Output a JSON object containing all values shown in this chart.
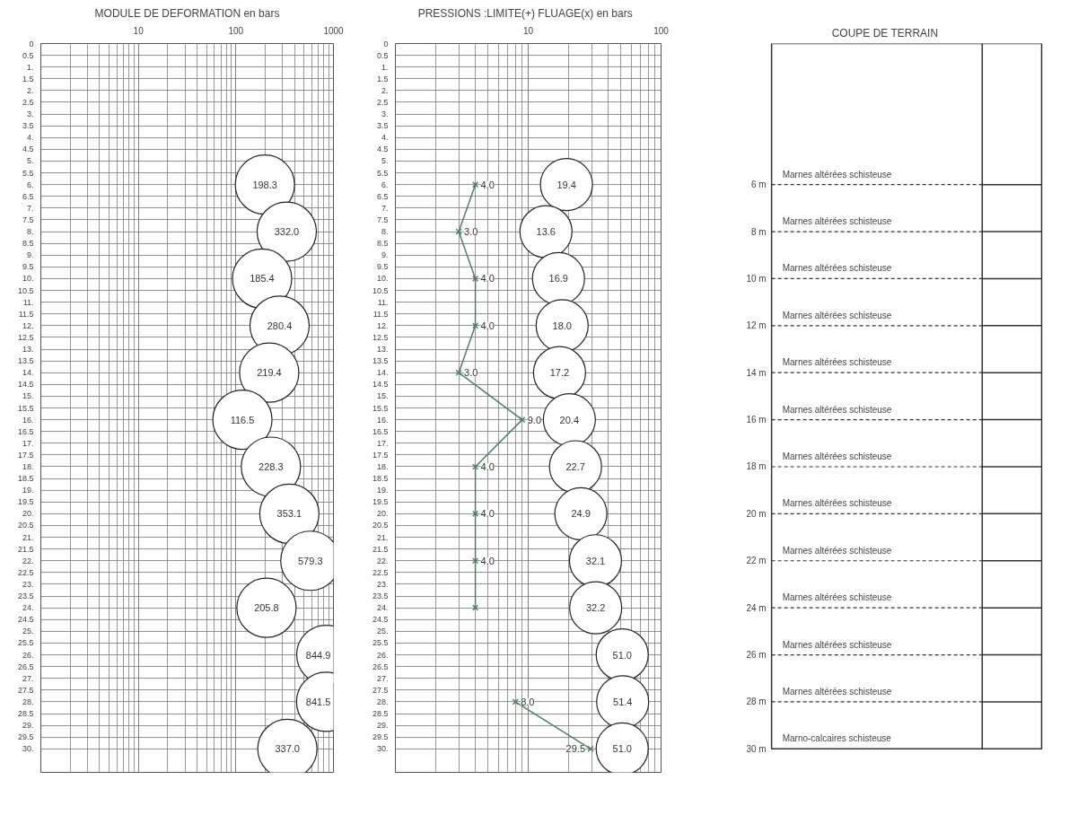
{
  "chart_data": [
    {
      "type": "scatter",
      "title": "MODULE DE DEFORMATION en bars",
      "orientation": "horizontal",
      "log": "x",
      "grid": true,
      "marker": "circle",
      "xlim": [
        1,
        1000
      ],
      "xticks": [
        10,
        100,
        1000
      ],
      "ylim": [
        31,
        0
      ],
      "yticks": [
        0,
        0.5,
        {
          "value": 1,
          "label": "1."
        },
        1.5,
        {
          "value": 2,
          "label": "2."
        },
        2.5,
        {
          "value": 3,
          "label": "3."
        },
        3.5,
        {
          "value": 4,
          "label": "4."
        },
        4.5,
        {
          "value": 5,
          "label": "5."
        },
        5.5,
        {
          "value": 6,
          "label": "6."
        },
        6.5,
        {
          "value": 7,
          "label": "7."
        },
        7.5,
        {
          "value": 8,
          "label": "8."
        },
        8.5,
        {
          "value": 9,
          "label": "9."
        },
        9.5,
        {
          "value": 10,
          "label": "10."
        },
        10.5,
        {
          "value": 11,
          "label": "11."
        },
        11.5,
        {
          "value": 12,
          "label": "12."
        },
        12.5,
        {
          "value": 13,
          "label": "13."
        },
        13.5,
        {
          "value": 14,
          "label": "14."
        },
        14.5,
        {
          "value": 15,
          "label": "15."
        },
        15.5,
        {
          "value": 16,
          "label": "16."
        },
        16.5,
        {
          "value": 17,
          "label": "17."
        },
        17.5,
        {
          "value": 18,
          "label": "18."
        },
        18.5,
        {
          "value": 19,
          "label": "19."
        },
        19.5,
        {
          "value": 20,
          "label": "20."
        },
        20.5,
        {
          "value": 21,
          "label": "21."
        },
        21.5,
        {
          "value": 22,
          "label": "22."
        },
        22.5,
        {
          "value": 23,
          "label": "23."
        },
        23.5,
        {
          "value": 24,
          "label": "24."
        },
        24.5,
        {
          "value": 25,
          "label": "25."
        },
        25.5,
        {
          "value": 26,
          "label": "26."
        },
        26.5,
        {
          "value": 27,
          "label": "27."
        },
        27.5,
        {
          "value": 28,
          "label": "28."
        },
        28.5,
        {
          "value": 29,
          "label": "29."
        },
        29.5,
        {
          "value": 30,
          "label": "30."
        }
      ],
      "x": [
        6,
        8,
        10,
        12,
        14,
        16,
        18,
        20,
        22,
        24,
        26,
        28,
        30
      ],
      "series": [
        {
          "color": "#222222",
          "values": [
            198.3,
            332.0,
            185.4,
            280.4,
            219.4,
            116.5,
            228.3,
            353.1,
            579.3,
            205.8,
            844.9,
            841.5,
            337.0
          ],
          "value_labels": [
            "198.3",
            "332.0",
            "185.4",
            "280.4",
            "219.4",
            "116.5",
            "228.3",
            "353.1",
            "579.3",
            "205.8",
            "844.9",
            "841.5",
            "337.0"
          ]
        }
      ]
    },
    {
      "type": "scatter",
      "title": "PRESSIONS :LIMITE(+)   FLUAGE(x) en bars",
      "orientation": "horizontal",
      "log": "x",
      "grid": true,
      "xlim": [
        1,
        100
      ],
      "xticks": [
        10,
        100
      ],
      "ylim": [
        31,
        0
      ],
      "yticks": [
        0,
        0.5,
        {
          "value": 1,
          "label": "1."
        },
        1.5,
        {
          "value": 2,
          "label": "2."
        },
        2.5,
        {
          "value": 3,
          "label": "3."
        },
        3.5,
        {
          "value": 4,
          "label": "4."
        },
        4.5,
        {
          "value": 5,
          "label": "5."
        },
        5.5,
        {
          "value": 6,
          "label": "6."
        },
        6.5,
        {
          "value": 7,
          "label": "7."
        },
        7.5,
        {
          "value": 8,
          "label": "8."
        },
        8.5,
        {
          "value": 9,
          "label": "9."
        },
        9.5,
        {
          "value": 10,
          "label": "10."
        },
        10.5,
        {
          "value": 11,
          "label": "11."
        },
        11.5,
        {
          "value": 12,
          "label": "12."
        },
        12.5,
        {
          "value": 13,
          "label": "13."
        },
        13.5,
        {
          "value": 14,
          "label": "14."
        },
        14.5,
        {
          "value": 15,
          "label": "15."
        },
        15.5,
        {
          "value": 16,
          "label": "16."
        },
        16.5,
        {
          "value": 17,
          "label": "17."
        },
        17.5,
        {
          "value": 18,
          "label": "18."
        },
        18.5,
        {
          "value": 19,
          "label": "19."
        },
        19.5,
        {
          "value": 20,
          "label": "20."
        },
        20.5,
        {
          "value": 21,
          "label": "21."
        },
        21.5,
        {
          "value": 22,
          "label": "22."
        },
        22.5,
        {
          "value": 23,
          "label": "23."
        },
        23.5,
        {
          "value": 24,
          "label": "24."
        },
        24.5,
        {
          "value": 25,
          "label": "25."
        },
        25.5,
        {
          "value": 26,
          "label": "26."
        },
        26.5,
        {
          "value": 27,
          "label": "27."
        },
        27.5,
        {
          "value": 28,
          "label": "28."
        },
        28.5,
        {
          "value": 29,
          "label": "29."
        },
        29.5,
        {
          "value": 30,
          "label": "30."
        }
      ],
      "x": [
        6,
        8,
        10,
        12,
        14,
        16,
        18,
        20,
        22,
        24,
        26,
        28,
        30
      ],
      "series": [
        {
          "type": "line",
          "marker": "cross",
          "color": "#4f7f63",
          "values": [
            4.0,
            3.0,
            4.0,
            4.0,
            3.0,
            9.0,
            4.0,
            4.0,
            4.0,
            4.0,
            null,
            8.0,
            29.5
          ],
          "value_labels": [
            "4.0",
            "3.0",
            "4.0",
            "4.0",
            "3.0",
            "9.0",
            "4.0",
            "4.0",
            "4.0",
            null,
            null,
            "8.0",
            "29.5"
          ]
        },
        {
          "type": "scatter",
          "marker": "circle",
          "color": "#222222",
          "values": [
            19.4,
            13.6,
            16.9,
            18.0,
            17.2,
            20.4,
            22.7,
            24.9,
            32.1,
            32.2,
            51.0,
            51.4,
            51.0
          ],
          "value_labels": [
            "19.4",
            "13.6",
            "16.9",
            "18.0",
            "17.2",
            "20.4",
            "22.7",
            "24.9",
            "32.1",
            "32.2",
            "51.0",
            "51.4",
            "51.0"
          ]
        }
      ]
    },
    {
      "type": "other",
      "title": "COUPE DE TERRAIN",
      "categories": [
        "Marnes altérées schisteuse",
        "Marnes altérées schisteuse",
        "Marnes altérées schisteuse",
        "Marnes altérées schisteuse",
        "Marnes altérées schisteuse",
        "Marnes altérées schisteuse",
        "Marnes altérées schisteuse",
        "Marnes altérées schisteuse",
        "Marnes altérées schisteuse",
        "Marnes altérées schisteuse",
        "Marnes altérées schisteuse",
        "Marnes altérées schisteuse",
        "Marno-calcaires schisteuse"
      ],
      "values": [
        6,
        8,
        10,
        12,
        14,
        16,
        18,
        20,
        22,
        24,
        26,
        28,
        30
      ],
      "value_labels": [
        "6 m",
        "8 m",
        "10 m",
        "12 m",
        "14 m",
        "16 m",
        "18 m",
        "20 m",
        "22 m",
        "24 m",
        "26 m",
        "28 m",
        "30 m"
      ]
    }
  ]
}
